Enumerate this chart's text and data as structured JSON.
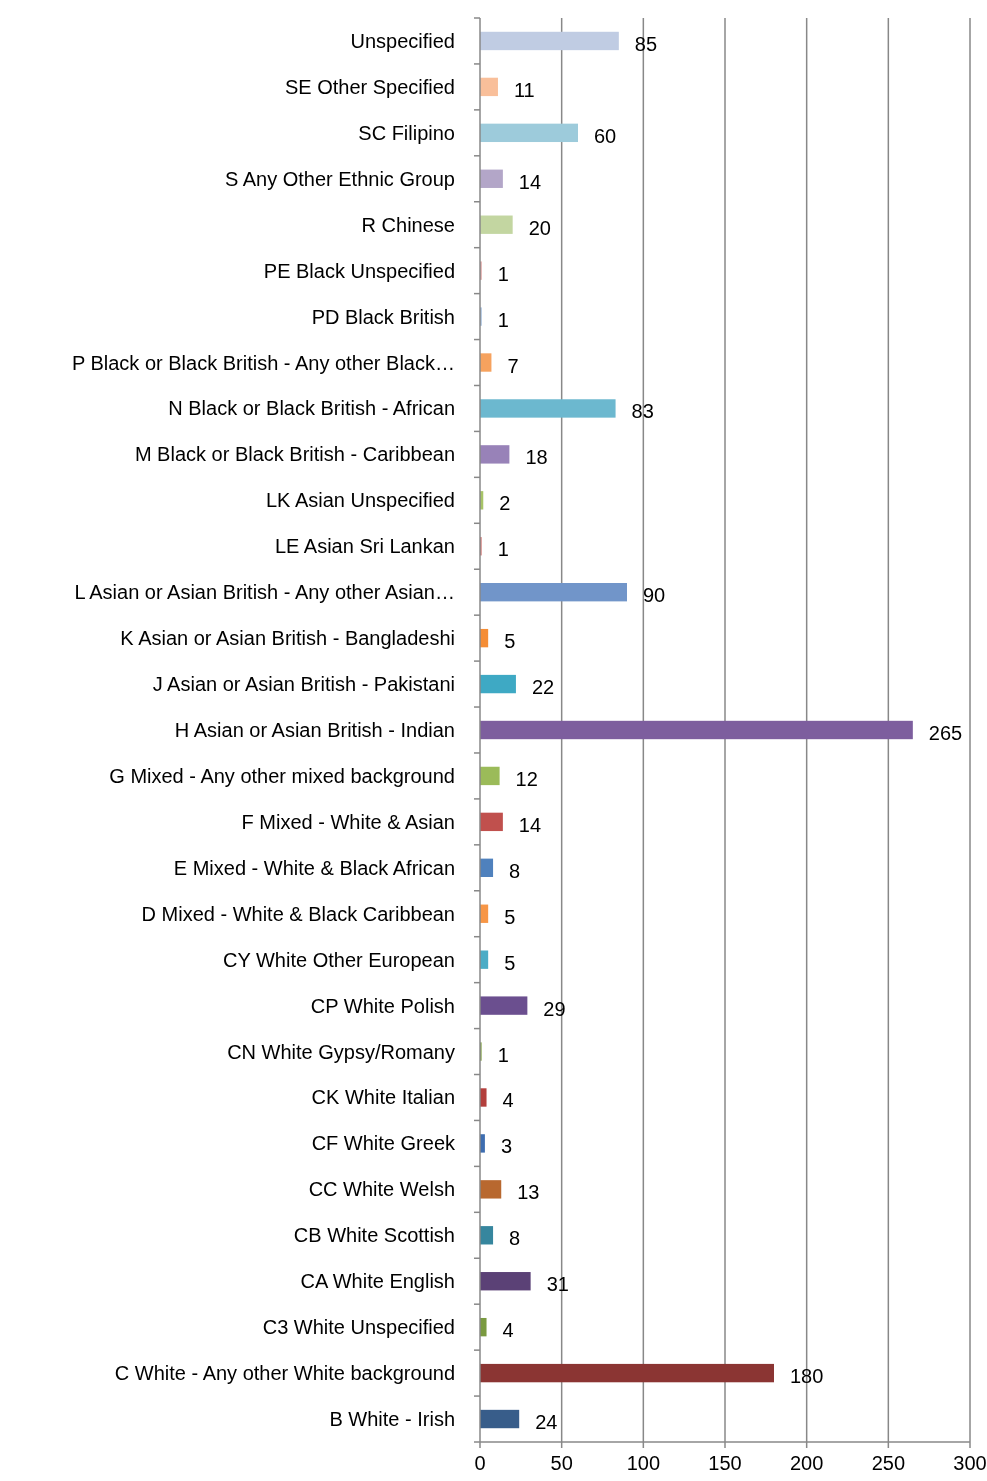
{
  "chart_data": {
    "type": "bar",
    "orientation": "horizontal",
    "categories": [
      "Unspecified",
      "SE Other Specified",
      "SC Filipino",
      "S Any Other Ethnic Group",
      "R Chinese",
      "PE Black Unspecified",
      "PD Black British",
      "P Black or Black British - Any other Black…",
      "N Black or Black British - African",
      "M Black or Black British - Caribbean",
      "LK Asian Unspecified",
      "LE Asian Sri Lankan",
      "L Asian or Asian British - Any other Asian…",
      "K Asian or Asian British - Bangladeshi",
      "J Asian or Asian British - Pakistani",
      "H Asian or Asian British - Indian",
      "G Mixed - Any other mixed background",
      "F Mixed - White & Asian",
      "E Mixed - White & Black African",
      "D Mixed - White & Black Caribbean",
      "CY White Other European",
      "CP White Polish",
      "CN White Gypsy/Romany",
      "CK White Italian",
      "CF White Greek",
      "CC White Welsh",
      "CB White Scottish",
      "CA White English",
      "C3 White Unspecified",
      "C White - Any other White background",
      "B White - Irish"
    ],
    "values": [
      85,
      11,
      60,
      14,
      20,
      1,
      1,
      7,
      83,
      18,
      2,
      1,
      90,
      5,
      22,
      265,
      12,
      14,
      8,
      5,
      5,
      29,
      1,
      4,
      3,
      13,
      8,
      31,
      4,
      180,
      24
    ],
    "colors": [
      "#c0cce3",
      "#f9bf9a",
      "#9dcbdb",
      "#b3a6c8",
      "#c3d6a1",
      "#d99694",
      "#95b3d7",
      "#f6a25e",
      "#6cb8cf",
      "#9882b8",
      "#a7c467",
      "#cd7371",
      "#7195c9",
      "#f58d35",
      "#3ea9c4",
      "#7d5e9e",
      "#9bbb59",
      "#c0504d",
      "#4f81bd",
      "#f79646",
      "#4bacc6",
      "#6b4f8f",
      "#84a24a",
      "#b33f3c",
      "#3e6db0",
      "#b8682f",
      "#36869e",
      "#5b4176",
      "#7a9a40",
      "#8b3533",
      "#385d8a"
    ],
    "xlim": [
      0,
      300
    ],
    "xticks": [
      0,
      50,
      100,
      150,
      200,
      250,
      300
    ],
    "grid": "x",
    "data_labels": true
  }
}
